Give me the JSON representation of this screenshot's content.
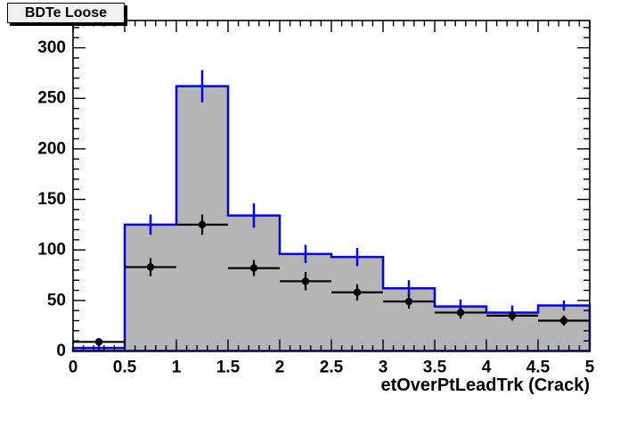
{
  "window": {
    "background": "#ffffff"
  },
  "title_box": {
    "label": "BDTe Loose",
    "fill": "#f0f0f0",
    "border": "#000000"
  },
  "chart_data": {
    "type": "bar",
    "title": "BDTe Loose",
    "xlabel": "etOverPtLeadTrk (Crack)",
    "ylabel": "",
    "xlim": [
      0,
      5
    ],
    "ylim": [
      0,
      327
    ],
    "grid": false,
    "legend": false,
    "x_tick_values": [
      0,
      0.5,
      1,
      1.5,
      2,
      2.5,
      3,
      3.5,
      4,
      4.5,
      5
    ],
    "x_tick_labels": [
      "0",
      "0.5",
      "1",
      "1.5",
      "2",
      "2.5",
      "3",
      "3.5",
      "4",
      "4.5",
      "5"
    ],
    "x_minor_step": 0.1,
    "y_tick_values": [
      0,
      50,
      100,
      150,
      200,
      250,
      300
    ],
    "y_tick_labels": [
      "0",
      "50",
      "100",
      "150",
      "200",
      "250",
      "300"
    ],
    "y_minor_step": 10,
    "bin_edges": [
      0,
      0.5,
      1,
      1.5,
      2,
      2.5,
      3,
      3.5,
      4,
      4.5,
      5
    ],
    "bin_centers": [
      0.25,
      0.75,
      1.25,
      1.75,
      2.25,
      2.75,
      3.25,
      3.75,
      4.25,
      4.75
    ],
    "series": [
      {
        "name": "background-histogram",
        "style": "filled-step-histogram",
        "fill_color": "#b5b5b5",
        "line_color": "#0000ff",
        "values": [
          3,
          125,
          262,
          134,
          96,
          93,
          62,
          44,
          38,
          45
        ],
        "errors": [
          3,
          10,
          16,
          12,
          9,
          9,
          8,
          7,
          7,
          5
        ]
      },
      {
        "name": "data-points",
        "style": "marker-errorbars",
        "marker": "filled-circle",
        "color": "#000000",
        "values": [
          9,
          83,
          125,
          82,
          69,
          58,
          49,
          38,
          35,
          30
        ],
        "errors": [
          3,
          9,
          10,
          8,
          9,
          8,
          7,
          6,
          5,
          5
        ],
        "x_half_width": 0.25
      }
    ]
  }
}
